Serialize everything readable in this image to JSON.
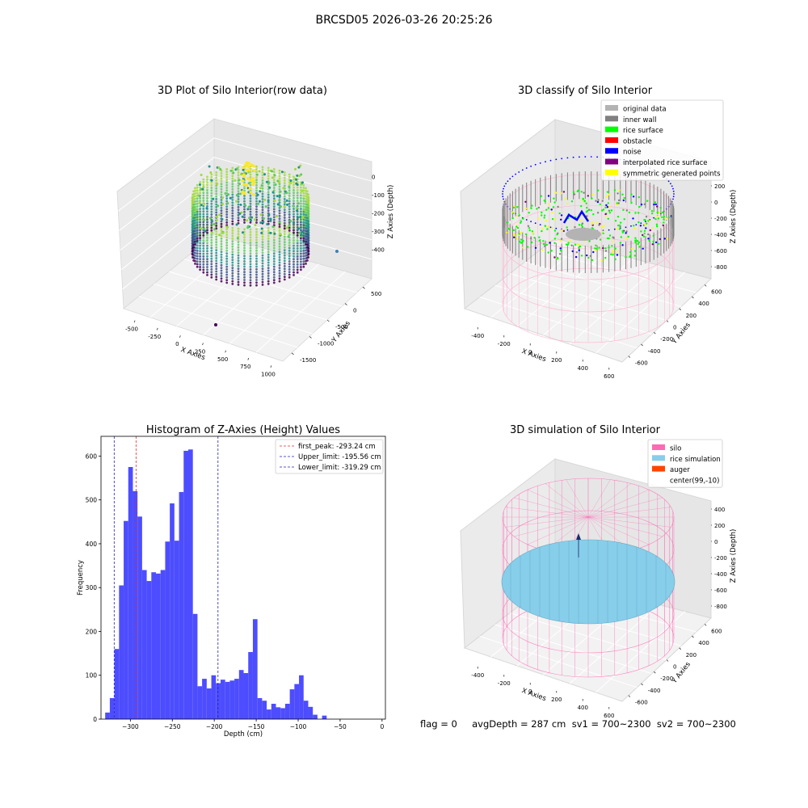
{
  "figure": {
    "suptitle": "BRCSD05 2026-03-26 20:25:26",
    "footer": "flag = 0     avgDepth = 287 cm  sv1 = 700~2300  sv2 = 700~2300"
  },
  "colors": {
    "hist_bar": "#4d4dff",
    "first_peak": "#e03030",
    "limit": "#2020c0",
    "silo": "#ff69b4",
    "rice_simulation": "#87ceeb",
    "auger": "#ff4500",
    "original_data": "#b3b3b3",
    "inner_wall": "#808080",
    "rice_surface": "#00ff00",
    "obstacle": "#ff0000",
    "noise": "#0000ff",
    "interpolated": "#800080",
    "symmetric": "#ffff00"
  },
  "chart_data": [
    {
      "type": "scatter",
      "title": "3D Plot of Silo Interior(row data)",
      "xlabel": "X Axies",
      "ylabel": "Y Axies",
      "zlabel": "Z Axies (Depth)",
      "x_ticks": [
        "-500",
        "-250",
        "0",
        "250",
        "500",
        "750",
        "1000"
      ],
      "y_ticks": [
        "500",
        "0",
        "-500",
        "-1000",
        "-1500"
      ],
      "z_ticks": [
        "0",
        "-100",
        "-200",
        "-300",
        "-400"
      ],
      "colormap": "viridis"
    },
    {
      "type": "scatter",
      "title": "3D classify of Silo Interior",
      "xlabel": "X Axies",
      "ylabel": "Y Axies",
      "zlabel": "Z Axies (Depth)",
      "x_ticks": [
        "-400",
        "-200",
        "0",
        "200",
        "400",
        "600"
      ],
      "y_ticks": [
        "600",
        "400",
        "200",
        "0",
        "-200",
        "-400",
        "-600"
      ],
      "z_ticks": [
        "200",
        "0",
        "-200",
        "-400",
        "-600",
        "-800"
      ],
      "legend": [
        "original data",
        "inner wall",
        "rice surface",
        "obstacle",
        "noise",
        "interpolated rice surface",
        "symmetric generated points"
      ],
      "legend_placement": "top-right"
    },
    {
      "type": "bar",
      "title": "Histogram of Z-Axies (Height) Values",
      "xlabel": "Depth (cm)",
      "ylabel": "Frequency",
      "xlim": [
        -335,
        4
      ],
      "ylim": [
        0,
        645
      ],
      "x_ticks": [
        -300,
        -250,
        -200,
        -150,
        -100,
        -50,
        0
      ],
      "y_ticks": [
        0,
        100,
        200,
        300,
        400,
        500,
        600
      ],
      "bin_start": -330,
      "bin_width": 5.5,
      "values": [
        15,
        48,
        160,
        305,
        452,
        575,
        520,
        462,
        340,
        315,
        335,
        332,
        340,
        405,
        492,
        407,
        518,
        612,
        615,
        240,
        75,
        92,
        70,
        100,
        82,
        90,
        85,
        88,
        92,
        112,
        105,
        153,
        228,
        48,
        42,
        22,
        35,
        27,
        25,
        35,
        68,
        80,
        100,
        42,
        28,
        10,
        0,
        8
      ],
      "lines": [
        {
          "label": "first_peak: -293.24 cm",
          "x": -293.24,
          "color": "#e03030"
        },
        {
          "label": "Upper_limit: -195.56 cm",
          "x": -195.56,
          "color": "#2020c0"
        },
        {
          "label": "Lower_limit: -319.29 cm",
          "x": -319.29,
          "color": "#2020c0"
        }
      ],
      "legend_placement": "top-right"
    },
    {
      "type": "scatter",
      "title": "3D simulation of Silo Interior",
      "xlabel": "X Axies",
      "ylabel": "Y Axies",
      "zlabel": "Z Axies (Depth)",
      "x_ticks": [
        "-400",
        "-200",
        "0",
        "200",
        "400",
        "600"
      ],
      "y_ticks": [
        "600",
        "400",
        "200",
        "0",
        "-200",
        "-400",
        "-600"
      ],
      "z_ticks": [
        "400",
        "200",
        "0",
        "-200",
        "-400",
        "-600",
        "-800"
      ],
      "legend": [
        "silo",
        "rice simulation",
        "auger",
        "center(99,-10)"
      ],
      "legend_placement": "top-right"
    }
  ]
}
